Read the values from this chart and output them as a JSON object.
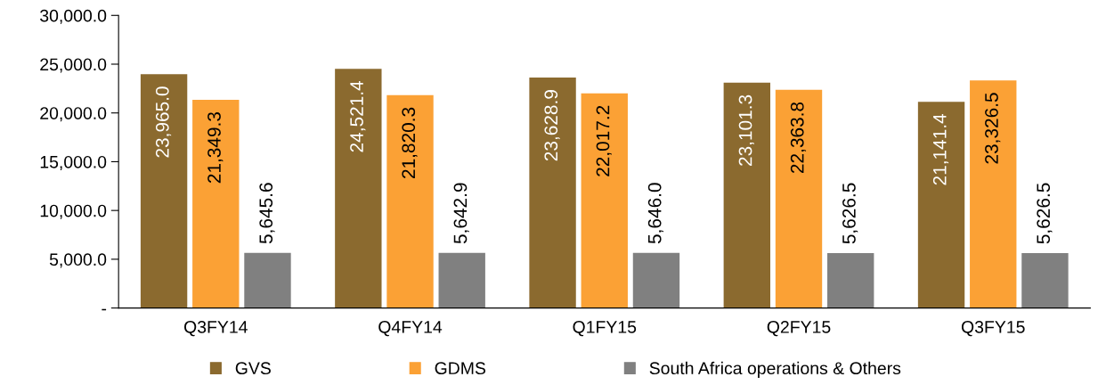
{
  "chart_data": {
    "type": "bar",
    "categories": [
      "Q3FY14",
      "Q4FY14",
      "Q1FY15",
      "Q2FY15",
      "Q3FY15"
    ],
    "series": [
      {
        "name": "GVS",
        "color": "#8b6a2f",
        "values": [
          23965.0,
          24521.4,
          23628.9,
          23101.3,
          21141.4
        ],
        "value_labels": [
          "23,965.0",
          "24,521.4",
          "23,628.9",
          "23,101.3",
          "21,141.4"
        ]
      },
      {
        "name": "GDMS",
        "color": "#fba135",
        "values": [
          21349.3,
          21820.3,
          22017.2,
          22363.8,
          23326.5
        ],
        "value_labels": [
          "21,349.3",
          "21,820.3",
          "22,017.2",
          "22,363.8",
          "23,326.5"
        ]
      },
      {
        "name": "South Africa operations & Others",
        "color": "#808080",
        "values": [
          5645.6,
          5642.9,
          5646.0,
          5626.5,
          5626.5
        ],
        "value_labels": [
          "5,645.6",
          "5,642.9",
          "5,646.0",
          "5,626.5",
          "5,626.5"
        ]
      }
    ],
    "ylim": [
      0,
      30000
    ],
    "yticks": [
      {
        "value": 0,
        "label": "-"
      },
      {
        "value": 5000,
        "label": "5,000.0"
      },
      {
        "value": 10000,
        "label": "10,000.0"
      },
      {
        "value": 15000,
        "label": "15,000.0"
      },
      {
        "value": 20000,
        "label": "20,000.0"
      },
      {
        "value": 25000,
        "label": "25,000.0"
      },
      {
        "value": 30000,
        "label": "30,000.0"
      }
    ],
    "grid": false,
    "legend": "bottom"
  }
}
